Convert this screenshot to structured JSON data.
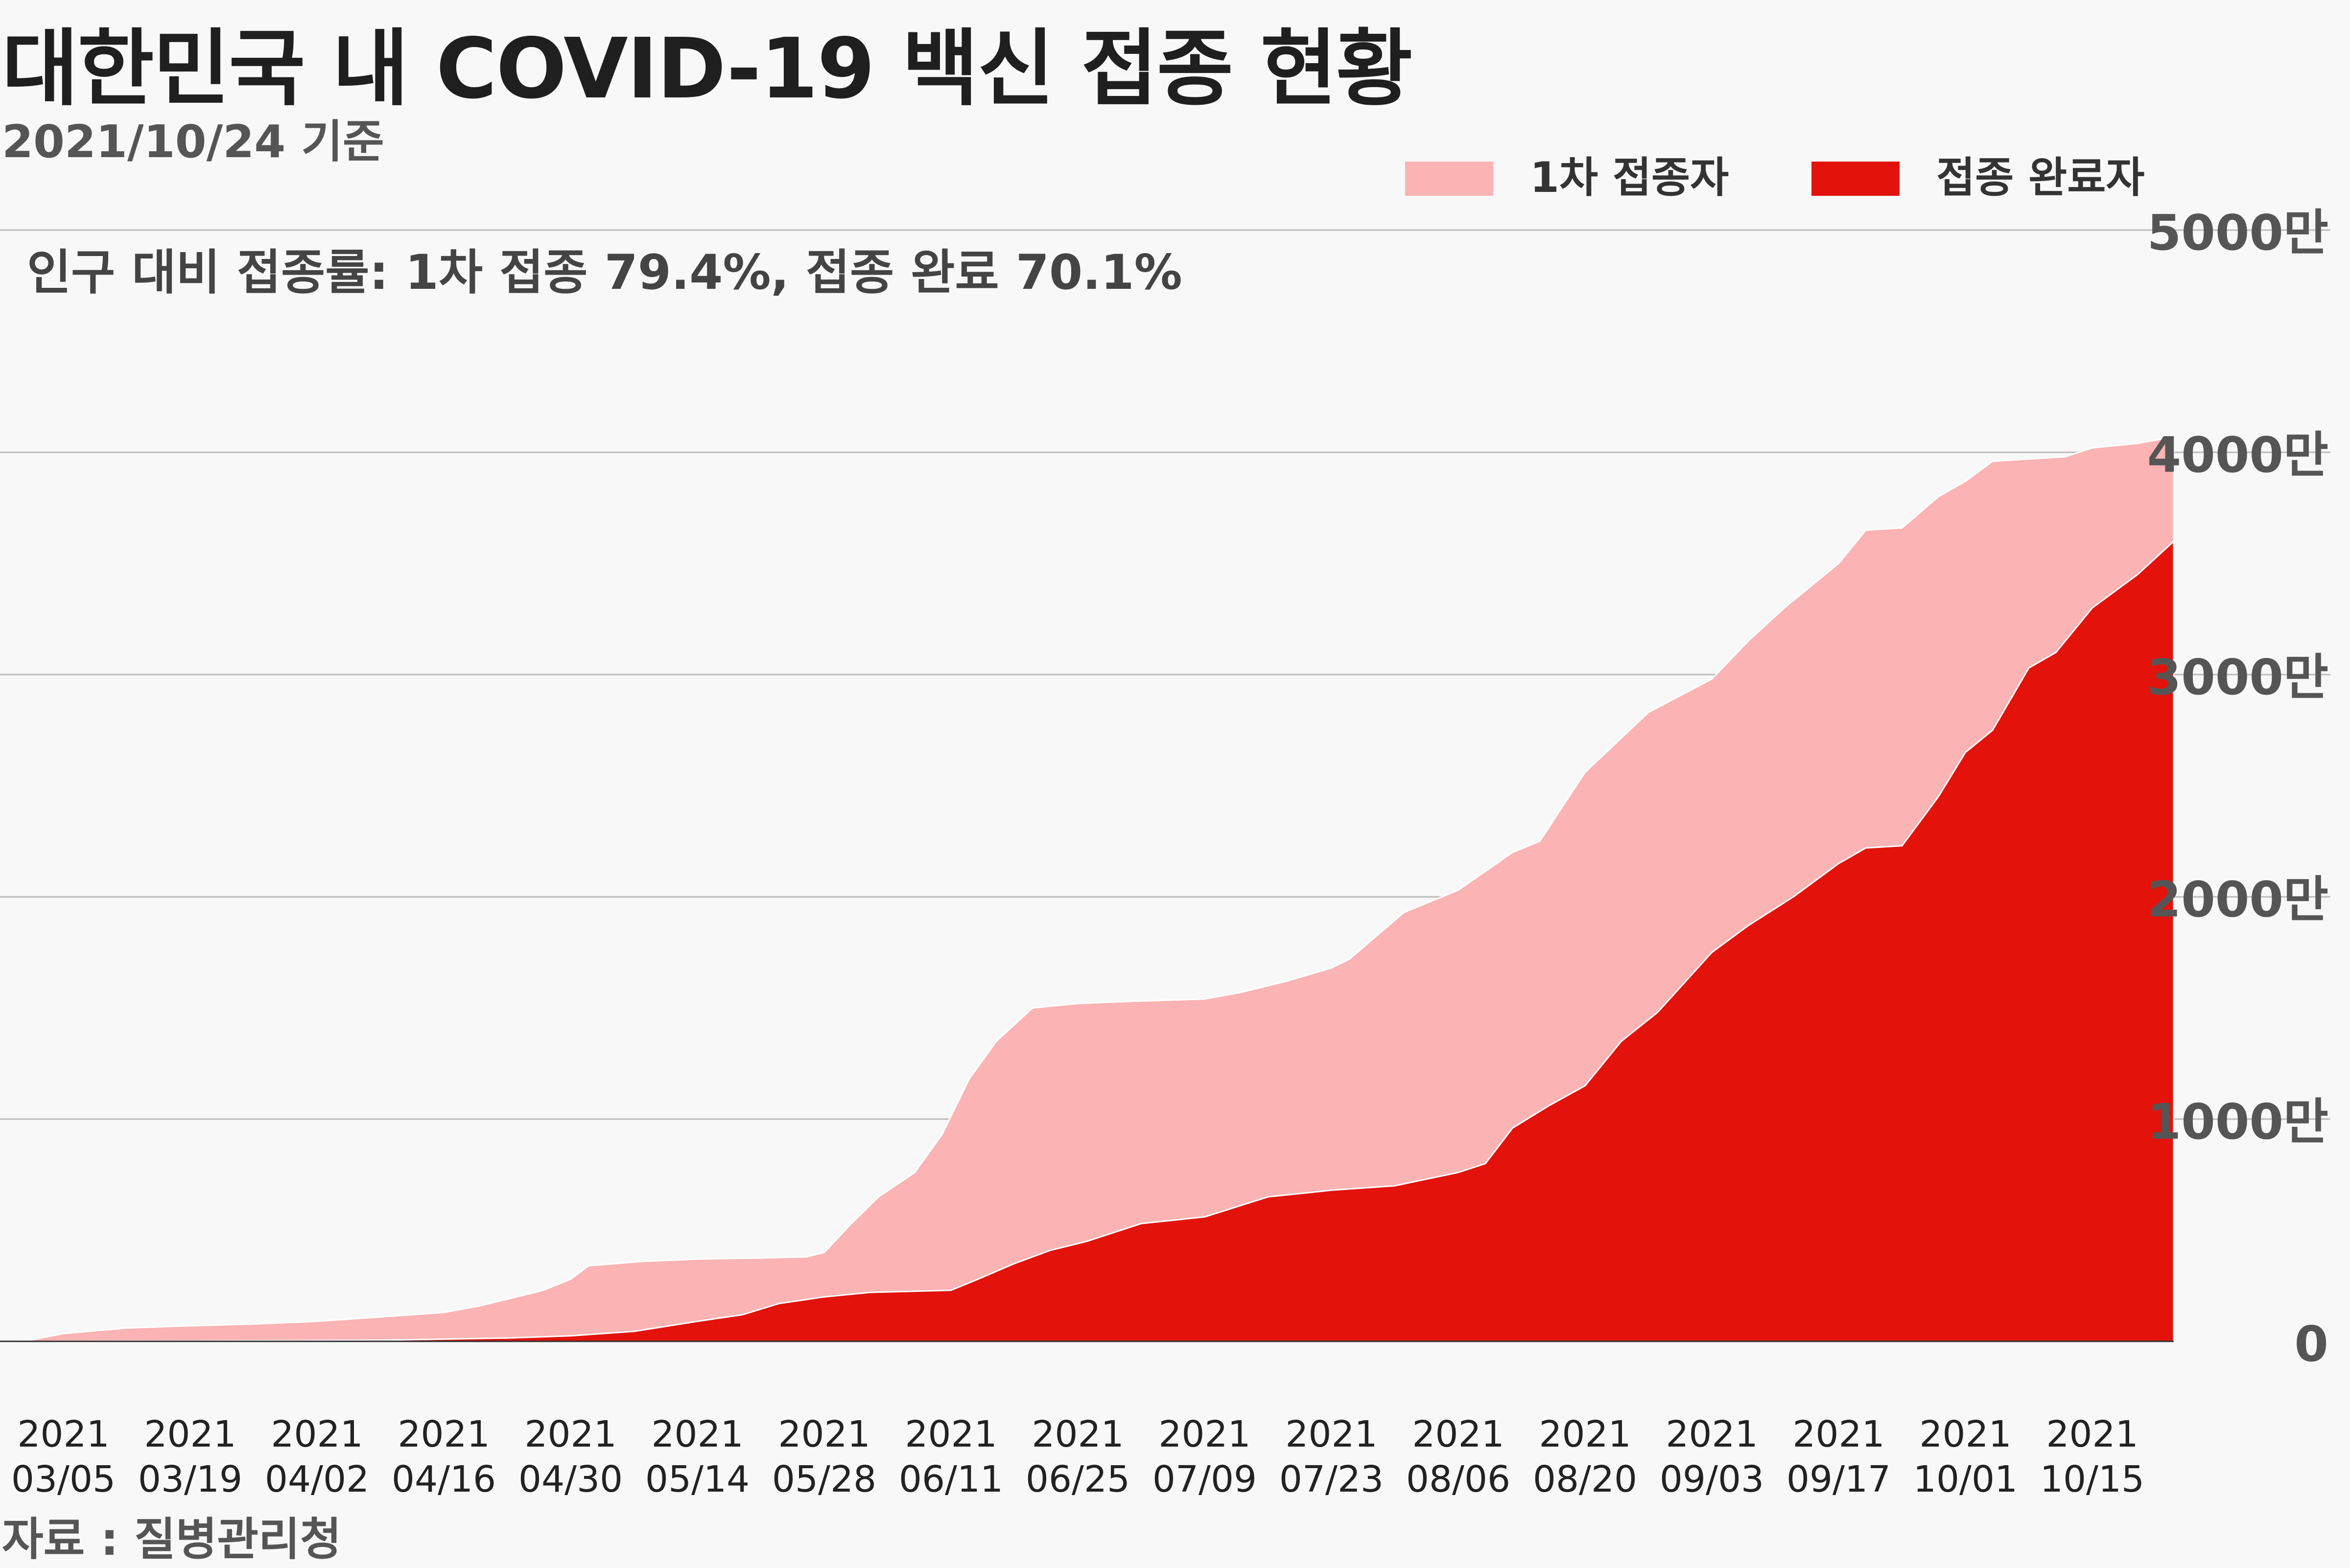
{
  "title": "대한민국 내 COVID-19 백신 접종 현황",
  "subtitle": "2021/10/24 기준",
  "source": "자료 : 질병관리청",
  "annotation": "인구 대비 접종률: 1차 접종 79.4%, 접종 완료 70.1%",
  "colors": {
    "first_dose": "#fbb3b3",
    "fully_vaccinated": "#e3120b",
    "grid": "#bbbbbb"
  },
  "chart_data": {
    "type": "area",
    "title": "대한민국 내 COVID-19 백신 접종 현황",
    "subtitle": "2021/10/24 기준",
    "xlabel": "",
    "ylabel": "",
    "ylim": [
      0,
      50000000
    ],
    "y_ticks": [
      0,
      10000000,
      20000000,
      30000000,
      40000000,
      50000000
    ],
    "y_tick_labels": [
      "0",
      "1000만",
      "2000만",
      "3000만",
      "4000만",
      "5000만"
    ],
    "x_range": [
      "2021-02-26",
      "2021-10-24"
    ],
    "x_ticks": [
      "2021-03-05",
      "2021-03-19",
      "2021-04-02",
      "2021-04-16",
      "2021-04-30",
      "2021-05-14",
      "2021-05-28",
      "2021-06-11",
      "2021-06-25",
      "2021-07-09",
      "2021-07-23",
      "2021-08-06",
      "2021-08-20",
      "2021-09-03",
      "2021-09-17",
      "2021-10-01",
      "2021-10-15"
    ],
    "x_tick_labels": [
      [
        "2021",
        "03/05"
      ],
      [
        "2021",
        "03/19"
      ],
      [
        "2021",
        "04/02"
      ],
      [
        "2021",
        "04/16"
      ],
      [
        "2021",
        "04/30"
      ],
      [
        "2021",
        "05/14"
      ],
      [
        "2021",
        "05/28"
      ],
      [
        "2021",
        "06/11"
      ],
      [
        "2021",
        "06/25"
      ],
      [
        "2021",
        "07/09"
      ],
      [
        "2021",
        "07/23"
      ],
      [
        "2021",
        "08/06"
      ],
      [
        "2021",
        "08/20"
      ],
      [
        "2021",
        "09/03"
      ],
      [
        "2021",
        "09/17"
      ],
      [
        "2021",
        "10/01"
      ],
      [
        "2021",
        "10/15"
      ]
    ],
    "legend_position": "top-right",
    "grid": true,
    "series": [
      {
        "name": "1차 접종자",
        "color": "#fbb3b3",
        "points": [
          [
            "2021-02-26",
            0
          ],
          [
            "2021-03-01",
            30000
          ],
          [
            "2021-03-05",
            350000
          ],
          [
            "2021-03-12",
            600000
          ],
          [
            "2021-03-19",
            700000
          ],
          [
            "2021-03-26",
            780000
          ],
          [
            "2021-04-02",
            900000
          ],
          [
            "2021-04-09",
            1100000
          ],
          [
            "2021-04-16",
            1300000
          ],
          [
            "2021-04-20",
            1600000
          ],
          [
            "2021-04-27",
            2300000
          ],
          [
            "2021-04-30",
            2800000
          ],
          [
            "2021-05-02",
            3400000
          ],
          [
            "2021-05-08",
            3600000
          ],
          [
            "2021-05-14",
            3700000
          ],
          [
            "2021-05-21",
            3750000
          ],
          [
            "2021-05-26",
            3800000
          ],
          [
            "2021-05-28",
            4000000
          ],
          [
            "2021-05-31",
            5300000
          ],
          [
            "2021-06-03",
            6500000
          ],
          [
            "2021-06-07",
            7600000
          ],
          [
            "2021-06-10",
            9300000
          ],
          [
            "2021-06-13",
            11800000
          ],
          [
            "2021-06-16",
            13500000
          ],
          [
            "2021-06-20",
            15000000
          ],
          [
            "2021-06-25",
            15200000
          ],
          [
            "2021-07-01",
            15300000
          ],
          [
            "2021-07-09",
            15400000
          ],
          [
            "2021-07-13",
            15700000
          ],
          [
            "2021-07-18",
            16200000
          ],
          [
            "2021-07-23",
            16800000
          ],
          [
            "2021-07-25",
            17200000
          ],
          [
            "2021-07-31",
            19300000
          ],
          [
            "2021-08-06",
            20300000
          ],
          [
            "2021-08-12",
            22000000
          ],
          [
            "2021-08-15",
            22500000
          ],
          [
            "2021-08-20",
            25600000
          ],
          [
            "2021-08-27",
            28300000
          ],
          [
            "2021-09-03",
            29800000
          ],
          [
            "2021-09-07",
            31500000
          ],
          [
            "2021-09-11",
            33000000
          ],
          [
            "2021-09-17",
            35000000
          ],
          [
            "2021-09-20",
            36500000
          ],
          [
            "2021-09-24",
            36600000
          ],
          [
            "2021-09-28",
            38000000
          ],
          [
            "2021-10-01",
            38700000
          ],
          [
            "2021-10-04",
            39600000
          ],
          [
            "2021-10-08",
            39700000
          ],
          [
            "2021-10-12",
            39800000
          ],
          [
            "2021-10-15",
            40200000
          ],
          [
            "2021-10-20",
            40400000
          ],
          [
            "2021-10-24",
            40700000
          ]
        ]
      },
      {
        "name": "접종 완료자",
        "color": "#e3120b",
        "points": [
          [
            "2021-02-26",
            0
          ],
          [
            "2021-03-19",
            20000
          ],
          [
            "2021-04-09",
            50000
          ],
          [
            "2021-04-23",
            150000
          ],
          [
            "2021-04-30",
            250000
          ],
          [
            "2021-05-07",
            450000
          ],
          [
            "2021-05-14",
            900000
          ],
          [
            "2021-05-19",
            1200000
          ],
          [
            "2021-05-23",
            1700000
          ],
          [
            "2021-05-28",
            2000000
          ],
          [
            "2021-06-02",
            2200000
          ],
          [
            "2021-06-11",
            2300000
          ],
          [
            "2021-06-14",
            2800000
          ],
          [
            "2021-06-18",
            3500000
          ],
          [
            "2021-06-22",
            4100000
          ],
          [
            "2021-06-26",
            4500000
          ],
          [
            "2021-07-02",
            5300000
          ],
          [
            "2021-07-09",
            5600000
          ],
          [
            "2021-07-16",
            6500000
          ],
          [
            "2021-07-23",
            6800000
          ],
          [
            "2021-07-30",
            7000000
          ],
          [
            "2021-08-06",
            7600000
          ],
          [
            "2021-08-09",
            8000000
          ],
          [
            "2021-08-12",
            9600000
          ],
          [
            "2021-08-16",
            10600000
          ],
          [
            "2021-08-20",
            11500000
          ],
          [
            "2021-08-24",
            13500000
          ],
          [
            "2021-08-28",
            14800000
          ],
          [
            "2021-09-03",
            17500000
          ],
          [
            "2021-09-07",
            18700000
          ],
          [
            "2021-09-12",
            20000000
          ],
          [
            "2021-09-17",
            21500000
          ],
          [
            "2021-09-20",
            22200000
          ],
          [
            "2021-09-24",
            22300000
          ],
          [
            "2021-09-28",
            24500000
          ],
          [
            "2021-10-01",
            26500000
          ],
          [
            "2021-10-04",
            27500000
          ],
          [
            "2021-10-08",
            30300000
          ],
          [
            "2021-10-11",
            31000000
          ],
          [
            "2021-10-15",
            33000000
          ],
          [
            "2021-10-20",
            34500000
          ],
          [
            "2021-10-24",
            36000000
          ]
        ]
      }
    ]
  }
}
